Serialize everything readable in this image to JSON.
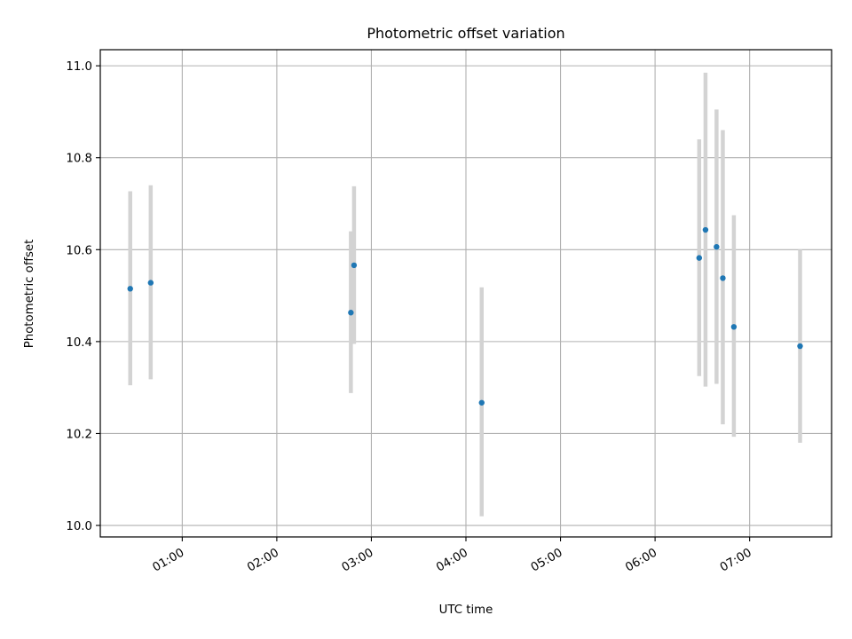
{
  "chart_data": {
    "type": "scatter",
    "title": "Photometric offset variation",
    "xlabel": "UTC time",
    "ylabel": "Photometric offset",
    "x_ticks": [
      "01:00",
      "02:00",
      "03:00",
      "04:00",
      "05:00",
      "06:00",
      "07:00"
    ],
    "y_ticks": [
      "10.0",
      "10.2",
      "10.4",
      "10.6",
      "10.8",
      "11.0"
    ],
    "xlim": [
      "00:08",
      "07:52"
    ],
    "ylim": [
      9.975,
      11.035
    ],
    "grid": true,
    "point_color": "#1f77b4",
    "errorbar_color": "#d3d3d3",
    "points": [
      {
        "x": "00:27",
        "y": 10.515,
        "ylow": 10.305,
        "yhigh": 10.727
      },
      {
        "x": "00:40",
        "y": 10.528,
        "ylow": 10.318,
        "yhigh": 10.74
      },
      {
        "x": "02:47",
        "y": 10.463,
        "ylow": 10.288,
        "yhigh": 10.64
      },
      {
        "x": "02:49",
        "y": 10.566,
        "ylow": 10.395,
        "yhigh": 10.738
      },
      {
        "x": "04:10",
        "y": 10.267,
        "ylow": 10.02,
        "yhigh": 10.518
      },
      {
        "x": "06:28",
        "y": 10.582,
        "ylow": 10.325,
        "yhigh": 10.84
      },
      {
        "x": "06:32",
        "y": 10.643,
        "ylow": 10.302,
        "yhigh": 10.985
      },
      {
        "x": "06:39",
        "y": 10.606,
        "ylow": 10.308,
        "yhigh": 10.905
      },
      {
        "x": "06:43",
        "y": 10.538,
        "ylow": 10.22,
        "yhigh": 10.86
      },
      {
        "x": "06:50",
        "y": 10.432,
        "ylow": 10.193,
        "yhigh": 10.675
      },
      {
        "x": "07:32",
        "y": 10.39,
        "ylow": 10.18,
        "yhigh": 10.6
      }
    ]
  }
}
